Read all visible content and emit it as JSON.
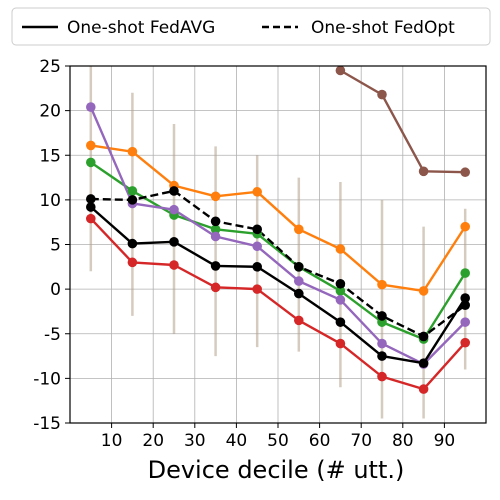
{
  "chart_data": {
    "type": "line",
    "title": "",
    "xlabel": "Device decile (# utt.)",
    "ylabel": "",
    "xlim": [
      0,
      100
    ],
    "ylim": [
      -15,
      25
    ],
    "x_ticks": [
      10,
      20,
      30,
      40,
      50,
      60,
      70,
      80,
      90
    ],
    "y_ticks": [
      -15,
      -10,
      -5,
      0,
      5,
      10,
      15,
      20,
      25
    ],
    "grid": true,
    "legend_position": "top",
    "x": [
      5,
      15,
      25,
      35,
      45,
      55,
      65,
      75,
      85,
      95
    ],
    "legend": [
      {
        "label": "One-shot FedAVG",
        "style": "solid",
        "color": "#000000"
      },
      {
        "label": "One-shot FedOpt",
        "style": "dashed",
        "color": "#000000"
      }
    ],
    "series": [
      {
        "color": "#8c564b",
        "style": "solid",
        "values": [
          null,
          null,
          null,
          null,
          null,
          null,
          24.5,
          21.8,
          13.2,
          13.1
        ]
      },
      {
        "color": "#ff7f0e",
        "style": "solid",
        "values": [
          16.1,
          15.4,
          11.6,
          10.4,
          10.9,
          6.7,
          4.5,
          0.5,
          -0.2,
          7.0
        ]
      },
      {
        "color": "#2ca02c",
        "style": "solid",
        "values": [
          14.2,
          11.0,
          8.3,
          6.7,
          6.2,
          2.5,
          -0.2,
          -3.7,
          -5.6,
          1.8
        ]
      },
      {
        "color": "#9467bd",
        "style": "solid",
        "values": [
          20.4,
          9.6,
          8.9,
          5.9,
          4.8,
          0.9,
          -1.2,
          -6.1,
          -8.4,
          -3.7
        ]
      },
      {
        "color": "#000000",
        "style": "dashed",
        "values": [
          10.1,
          10.0,
          11.0,
          7.6,
          6.7,
          2.5,
          0.6,
          -3.0,
          -5.3,
          -1.8
        ]
      },
      {
        "color": "#000000",
        "style": "solid",
        "values": [
          9.2,
          5.1,
          5.3,
          2.6,
          2.5,
          -0.5,
          -3.7,
          -7.5,
          -8.3,
          -1.0
        ]
      },
      {
        "color": "#d62728",
        "style": "solid",
        "values": [
          7.9,
          3.0,
          2.7,
          0.2,
          0.0,
          -3.5,
          -6.1,
          -9.8,
          -11.2,
          -6.0
        ]
      }
    ],
    "error_bars": {
      "description": "vertical spread ranges per decile",
      "ranges": [
        [
          2.0,
          25.0
        ],
        [
          -3.0,
          22.0
        ],
        [
          -5.0,
          18.5
        ],
        [
          -7.5,
          16.0
        ],
        [
          -6.5,
          15.0
        ],
        [
          -7.0,
          12.5
        ],
        [
          -11.0,
          12.0
        ],
        [
          -14.5,
          10.0
        ],
        [
          -14.5,
          7.0
        ],
        [
          -9.0,
          9.0
        ]
      ],
      "color": "#b5a08a"
    }
  }
}
